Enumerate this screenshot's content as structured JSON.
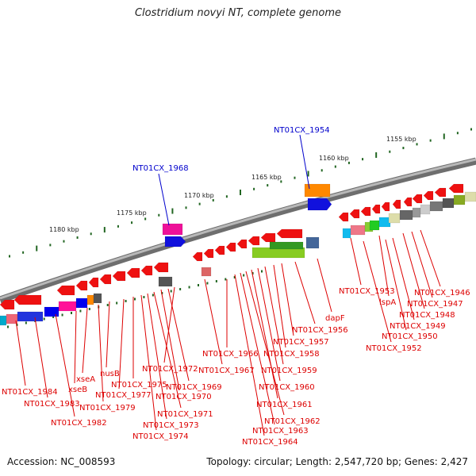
{
  "title": "Clostridium novyi NT, complete genome",
  "footer": {
    "accession": "Accession: NC_008593",
    "summary": "Topology: circular; Length: 2,547,720 bp; Genes: 2,427"
  },
  "scale_labels": [
    "1155 kbp",
    "1160 kbp",
    "1165 kbp",
    "1170 kbp",
    "1175 kbp",
    "1180 kbp"
  ],
  "highlighted_genes": [
    "NT01CX_1954",
    "NT01CX_1968"
  ],
  "gene_labels": [
    "NT01CX_1946",
    "NT01CX_1947",
    "NT01CX_1948",
    "lspA",
    "NT01CX_1949",
    "NT01CX_1950",
    "NT01CX_1953",
    "NT01CX_1952",
    "dapF",
    "NT01CX_1956",
    "NT01CX_1957",
    "NT01CX_1958",
    "NT01CX_1959",
    "NT01CX_1960",
    "NT01CX_1961",
    "NT01CX_1962",
    "NT01CX_1963",
    "NT01CX_1964",
    "NT01CX_1966",
    "NT01CX_1967",
    "NT01CX_1972",
    "NT01CX_1969",
    "NT01CX_1970",
    "NT01CX_1971",
    "NT01CX_1973",
    "NT01CX_1974",
    "NT01CX_1975",
    "NT01CX_1977",
    "nusB",
    "NT01CX_1979",
    "xseA",
    "xseB",
    "NT01CX_1984",
    "NT01CX_1983",
    "NT01CX_1982"
  ],
  "colors": {
    "label_red": "#dd0000",
    "label_blue": "#0000cc",
    "tick_green": "#226622",
    "backbone": "#888888"
  }
}
